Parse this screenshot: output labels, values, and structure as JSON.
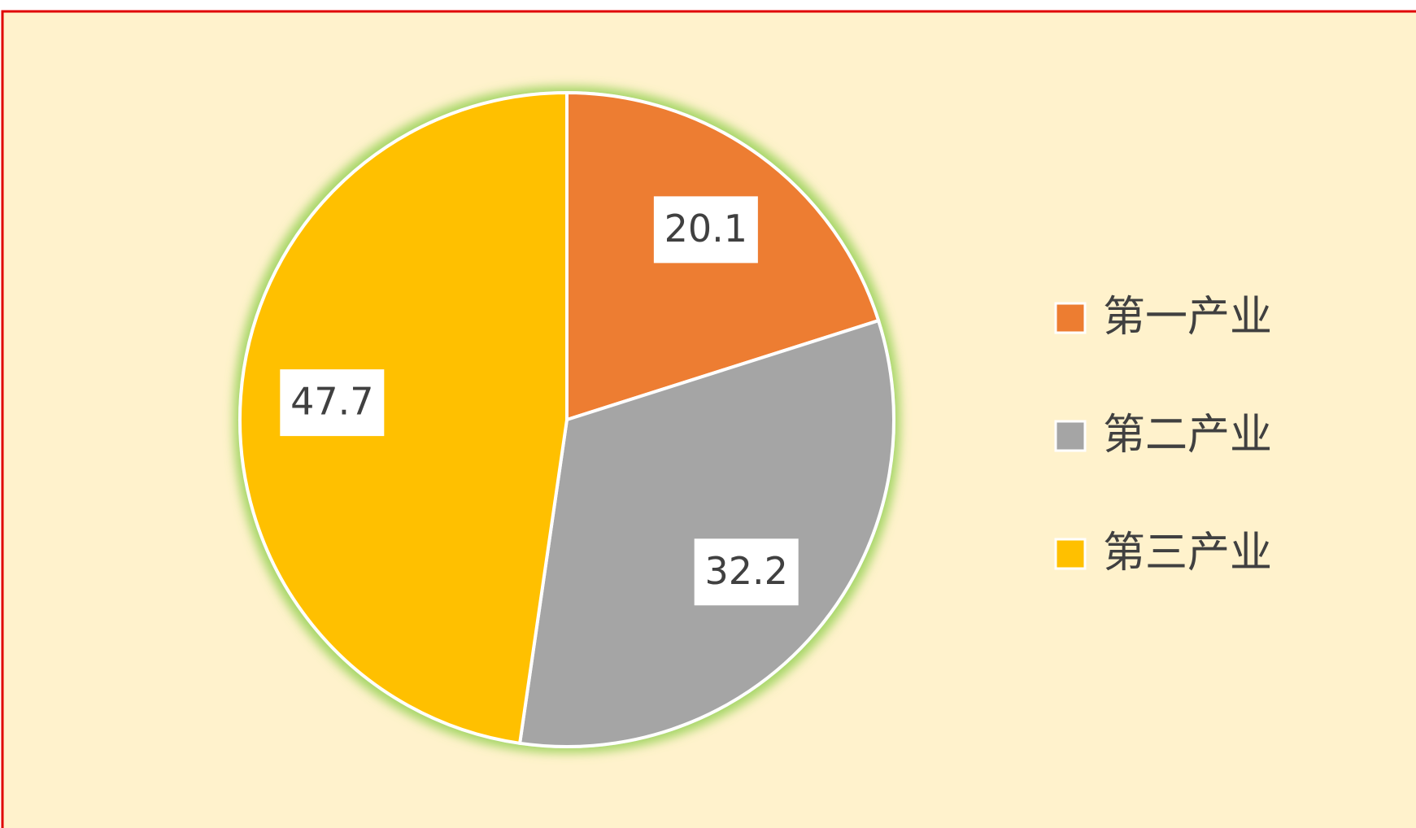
{
  "chart_data": {
    "type": "pie",
    "categories": [
      "第一产业",
      "第二产业",
      "第三产业"
    ],
    "values": [
      20.1,
      32.2,
      47.7
    ],
    "colors": [
      "#ed7d31",
      "#a5a5a5",
      "#ffc000"
    ],
    "legend": "right"
  }
}
